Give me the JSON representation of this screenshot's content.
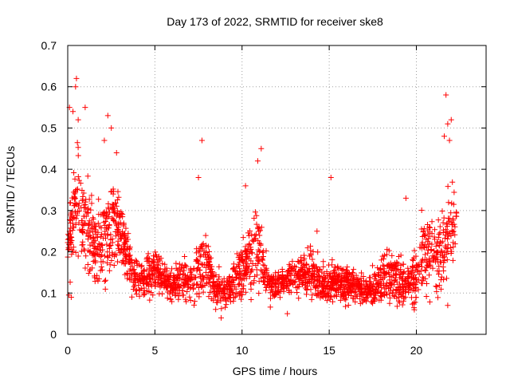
{
  "chart_data": {
    "type": "scatter",
    "title": "Day 173 of 2022, SRMTID for receiver ske8",
    "xlabel": "GPS time / hours",
    "ylabel": "SRMTID / TECUs",
    "xlim": [
      0,
      24
    ],
    "ylim": [
      0,
      0.7
    ],
    "xticks": [
      0,
      5,
      10,
      15,
      20
    ],
    "xtick_labels": [
      "0",
      "5",
      "10",
      "15",
      "20"
    ],
    "yticks": [
      0,
      0.1,
      0.2,
      0.3,
      0.4,
      0.5,
      0.6,
      0.7
    ],
    "ytick_labels": [
      "0",
      "0.1",
      "0.2",
      "0.3",
      "0.4",
      "0.5",
      "0.6",
      "0.7"
    ],
    "grid": true,
    "marker": "+",
    "color": "#ff0000",
    "approx_point_count": 2300,
    "x_data_range": [
      0,
      22.3
    ],
    "envelope": {
      "x": [
        0,
        0.5,
        1,
        1.5,
        2,
        2.5,
        3,
        3.5,
        4,
        4.5,
        5,
        5.5,
        6,
        6.5,
        7,
        7.5,
        8,
        8.5,
        9,
        9.5,
        10,
        10.5,
        11,
        11.5,
        12,
        12.5,
        13,
        13.5,
        14,
        14.5,
        15,
        15.5,
        16,
        16.5,
        17,
        17.5,
        18,
        18.5,
        19,
        19.5,
        20,
        20.5,
        21,
        21.5,
        22
      ],
      "center": [
        0.2,
        0.3,
        0.27,
        0.22,
        0.22,
        0.26,
        0.25,
        0.18,
        0.13,
        0.14,
        0.15,
        0.14,
        0.11,
        0.14,
        0.12,
        0.16,
        0.17,
        0.11,
        0.1,
        0.12,
        0.15,
        0.2,
        0.2,
        0.12,
        0.12,
        0.13,
        0.14,
        0.14,
        0.15,
        0.13,
        0.12,
        0.13,
        0.12,
        0.12,
        0.11,
        0.11,
        0.13,
        0.14,
        0.13,
        0.12,
        0.15,
        0.2,
        0.2,
        0.2,
        0.25
      ],
      "spread": [
        0.07,
        0.12,
        0.1,
        0.07,
        0.09,
        0.1,
        0.08,
        0.05,
        0.04,
        0.04,
        0.05,
        0.04,
        0.03,
        0.05,
        0.04,
        0.07,
        0.06,
        0.04,
        0.04,
        0.04,
        0.06,
        0.08,
        0.09,
        0.04,
        0.03,
        0.03,
        0.04,
        0.04,
        0.05,
        0.04,
        0.04,
        0.04,
        0.04,
        0.03,
        0.03,
        0.04,
        0.05,
        0.05,
        0.05,
        0.04,
        0.06,
        0.09,
        0.07,
        0.08,
        0.1
      ]
    },
    "notable_points": [
      {
        "x": 0.5,
        "y": 0.62
      },
      {
        "x": 0.45,
        "y": 0.6
      },
      {
        "x": 0.1,
        "y": 0.55
      },
      {
        "x": 0.3,
        "y": 0.54
      },
      {
        "x": 1.0,
        "y": 0.55
      },
      {
        "x": 0.6,
        "y": 0.52
      },
      {
        "x": 2.3,
        "y": 0.53
      },
      {
        "x": 2.5,
        "y": 0.5
      },
      {
        "x": 2.1,
        "y": 0.47
      },
      {
        "x": 2.8,
        "y": 0.44
      },
      {
        "x": 7.7,
        "y": 0.47
      },
      {
        "x": 7.5,
        "y": 0.38
      },
      {
        "x": 11.1,
        "y": 0.45
      },
      {
        "x": 10.9,
        "y": 0.42
      },
      {
        "x": 10.2,
        "y": 0.36
      },
      {
        "x": 15.1,
        "y": 0.38
      },
      {
        "x": 14.3,
        "y": 0.25
      },
      {
        "x": 19.4,
        "y": 0.33
      },
      {
        "x": 21.7,
        "y": 0.58
      },
      {
        "x": 21.8,
        "y": 0.51
      },
      {
        "x": 22.0,
        "y": 0.52
      },
      {
        "x": 21.9,
        "y": 0.47
      },
      {
        "x": 21.6,
        "y": 0.48
      },
      {
        "x": 21.8,
        "y": 0.07
      },
      {
        "x": 0.2,
        "y": 0.09
      },
      {
        "x": 8.8,
        "y": 0.04
      },
      {
        "x": 12.6,
        "y": 0.05
      }
    ]
  }
}
